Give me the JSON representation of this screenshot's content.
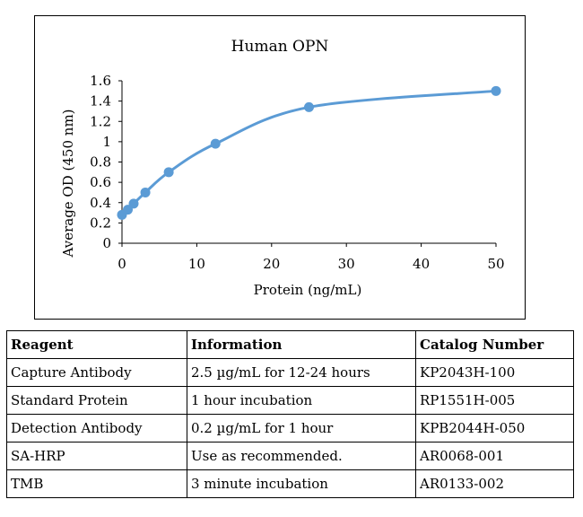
{
  "chart_data": {
    "type": "line",
    "title": "Human OPN",
    "xlabel": "Protein (ng/mL)",
    "ylabel": "Average OD (450 nm)",
    "xlim": [
      0,
      50
    ],
    "ylim": [
      0,
      1.6
    ],
    "xticks": [
      "0",
      "10",
      "20",
      "30",
      "40",
      "50"
    ],
    "yticks": [
      "0",
      "0.2",
      "0.4",
      "0.6",
      "0.8",
      "1",
      "1.2",
      "1.4",
      "1.6"
    ],
    "grid": false,
    "line_color": "#5B9BD5",
    "series": [
      {
        "x": [
          0,
          0.78,
          1.56,
          3.125,
          6.25,
          12.5,
          25,
          50
        ],
        "y": [
          0.28,
          0.33,
          0.39,
          0.5,
          0.7,
          0.98,
          1.34,
          1.5
        ]
      }
    ]
  },
  "table": {
    "headers": [
      "Reagent",
      "Information",
      "Catalog Number"
    ],
    "rows": [
      [
        "Capture Antibody",
        "2.5 µg/mL for 12-24 hours",
        "KP2043H-100"
      ],
      [
        "Standard Protein",
        "1 hour incubation",
        "RP1551H-005"
      ],
      [
        "Detection Antibody",
        "0.2 µg/mL for 1 hour",
        "KPB2044H-050"
      ],
      [
        "SA-HRP",
        "Use as recommended.",
        "AR0068-001"
      ],
      [
        "TMB",
        "3 minute incubation",
        "AR0133-002"
      ]
    ]
  }
}
